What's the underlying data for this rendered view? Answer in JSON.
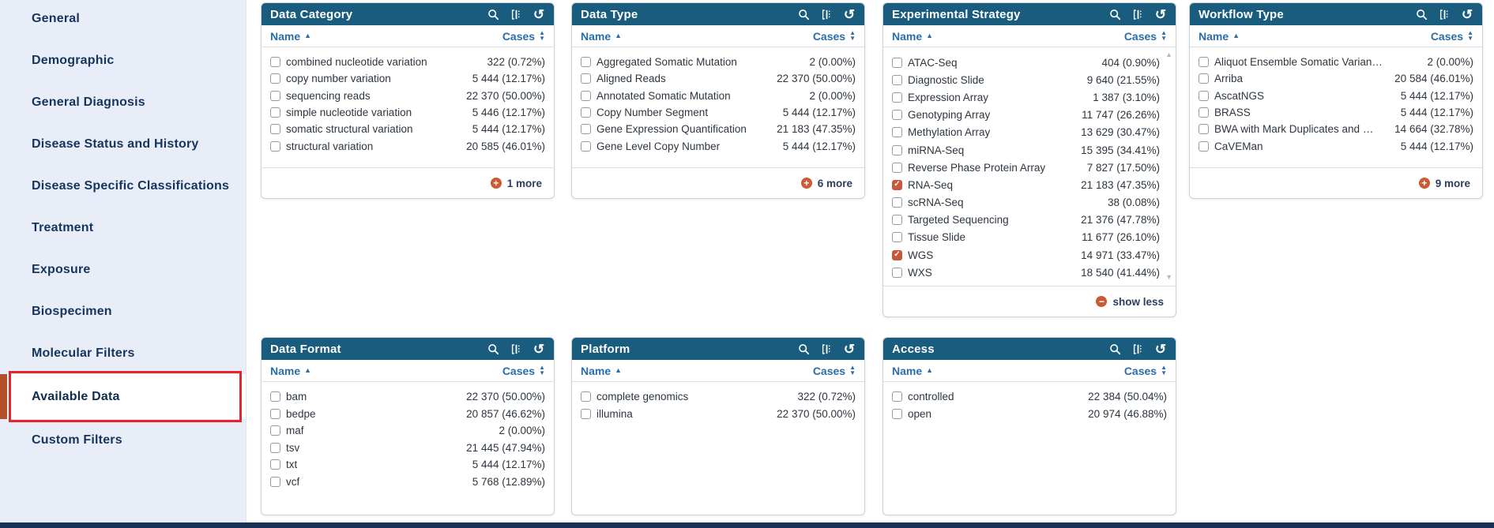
{
  "sidebar": {
    "items": [
      {
        "label": "General",
        "active": false
      },
      {
        "label": "Demographic",
        "active": false
      },
      {
        "label": "General Diagnosis",
        "active": false
      },
      {
        "label": "Disease Status and History",
        "active": false
      },
      {
        "label": "Disease Specific Classifications",
        "active": false
      },
      {
        "label": "Treatment",
        "active": false
      },
      {
        "label": "Exposure",
        "active": false
      },
      {
        "label": "Biospecimen",
        "active": false
      },
      {
        "label": "Molecular Filters",
        "active": false
      },
      {
        "label": "Available Data",
        "active": true
      },
      {
        "label": "Custom Filters",
        "active": false
      }
    ]
  },
  "cards": [
    {
      "title": "Data Category",
      "columns": {
        "name": "Name",
        "cases": "Cases"
      },
      "header_icons": [
        "search-icon",
        "flip-icon",
        "reset-icon"
      ],
      "items": [
        {
          "label": "combined nucleotide variation",
          "count": "322 (0.72%)",
          "checked": false
        },
        {
          "label": "copy number variation",
          "count": "5 444 (12.17%)",
          "checked": false
        },
        {
          "label": "sequencing reads",
          "count": "22 370 (50.00%)",
          "checked": false
        },
        {
          "label": "simple nucleotide variation",
          "count": "5 446 (12.17%)",
          "checked": false
        },
        {
          "label": "somatic structural variation",
          "count": "5 444 (12.17%)",
          "checked": false
        },
        {
          "label": "structural variation",
          "count": "20 585 (46.01%)",
          "checked": false
        }
      ],
      "footer": {
        "icon": "plus-icon",
        "label": "1 more"
      }
    },
    {
      "title": "Data Type",
      "columns": {
        "name": "Name",
        "cases": "Cases"
      },
      "header_icons": [
        "search-icon",
        "flip-icon",
        "reset-icon"
      ],
      "items": [
        {
          "label": "Aggregated Somatic Mutation",
          "count": "2 (0.00%)",
          "checked": false
        },
        {
          "label": "Aligned Reads",
          "count": "22 370 (50.00%)",
          "checked": false
        },
        {
          "label": "Annotated Somatic Mutation",
          "count": "2 (0.00%)",
          "checked": false
        },
        {
          "label": "Copy Number Segment",
          "count": "5 444 (12.17%)",
          "checked": false
        },
        {
          "label": "Gene Expression Quantification",
          "count": "21 183 (47.35%)",
          "checked": false
        },
        {
          "label": "Gene Level Copy Number",
          "count": "5 444 (12.17%)",
          "checked": false
        }
      ],
      "footer": {
        "icon": "plus-icon",
        "label": "6 more"
      }
    },
    {
      "title": "Experimental Strategy",
      "columns": {
        "name": "Name",
        "cases": "Cases"
      },
      "header_icons": [
        "search-icon",
        "flip-icon",
        "reset-icon"
      ],
      "scrollbar": true,
      "items": [
        {
          "label": "ATAC-Seq",
          "count": "404 (0.90%)",
          "checked": false
        },
        {
          "label": "Diagnostic Slide",
          "count": "9 640 (21.55%)",
          "checked": false
        },
        {
          "label": "Expression Array",
          "count": "1 387 (3.10%)",
          "checked": false
        },
        {
          "label": "Genotyping Array",
          "count": "11 747 (26.26%)",
          "checked": false
        },
        {
          "label": "Methylation Array",
          "count": "13 629 (30.47%)",
          "checked": false
        },
        {
          "label": "miRNA-Seq",
          "count": "15 395 (34.41%)",
          "checked": false
        },
        {
          "label": "Reverse Phase Protein Array",
          "count": "7 827 (17.50%)",
          "checked": false
        },
        {
          "label": "RNA-Seq",
          "count": "21 183 (47.35%)",
          "checked": true
        },
        {
          "label": "scRNA-Seq",
          "count": "38 (0.08%)",
          "checked": false
        },
        {
          "label": "Targeted Sequencing",
          "count": "21 376 (47.78%)",
          "checked": false
        },
        {
          "label": "Tissue Slide",
          "count": "11 677 (26.10%)",
          "checked": false
        },
        {
          "label": "WGS",
          "count": "14 971 (33.47%)",
          "checked": true
        },
        {
          "label": "WXS",
          "count": "18 540 (41.44%)",
          "checked": false
        }
      ],
      "footer": {
        "icon": "minus-icon",
        "label": "show less"
      }
    },
    {
      "title": "Workflow Type",
      "columns": {
        "name": "Name",
        "cases": "Cases"
      },
      "header_icons": [
        "search-icon",
        "flip-icon",
        "reset-icon"
      ],
      "items": [
        {
          "label": "Aliquot Ensemble Somatic Varian…",
          "count": "2 (0.00%)",
          "checked": false
        },
        {
          "label": "Arriba",
          "count": "20 584 (46.01%)",
          "checked": false
        },
        {
          "label": "AscatNGS",
          "count": "5 444 (12.17%)",
          "checked": false
        },
        {
          "label": "BRASS",
          "count": "5 444 (12.17%)",
          "checked": false
        },
        {
          "label": "BWA with Mark Duplicates and …",
          "count": "14 664 (32.78%)",
          "checked": false
        },
        {
          "label": "CaVEMan",
          "count": "5 444 (12.17%)",
          "checked": false
        }
      ],
      "footer": {
        "icon": "plus-icon",
        "label": "9 more"
      }
    },
    {
      "title": "Data Format",
      "columns": {
        "name": "Name",
        "cases": "Cases"
      },
      "header_icons": [
        "search-icon",
        "flip-icon",
        "reset-icon"
      ],
      "items": [
        {
          "label": "bam",
          "count": "22 370 (50.00%)",
          "checked": false
        },
        {
          "label": "bedpe",
          "count": "20 857 (46.62%)",
          "checked": false
        },
        {
          "label": "maf",
          "count": "2 (0.00%)",
          "checked": false
        },
        {
          "label": "tsv",
          "count": "21 445 (47.94%)",
          "checked": false
        },
        {
          "label": "txt",
          "count": "5 444 (12.17%)",
          "checked": false
        },
        {
          "label": "vcf",
          "count": "5 768 (12.89%)",
          "checked": false
        }
      ],
      "footer": null
    },
    {
      "title": "Platform",
      "columns": {
        "name": "Name",
        "cases": "Cases"
      },
      "header_icons": [
        "search-icon",
        "flip-icon",
        "reset-icon"
      ],
      "items": [
        {
          "label": "complete genomics",
          "count": "322 (0.72%)",
          "checked": false
        },
        {
          "label": "illumina",
          "count": "22 370 (50.00%)",
          "checked": false
        }
      ],
      "footer": null
    },
    {
      "title": "Access",
      "columns": {
        "name": "Name",
        "cases": "Cases"
      },
      "header_icons": [
        "search-icon",
        "flip-icon",
        "reset-icon"
      ],
      "items": [
        {
          "label": "controlled",
          "count": "22 384 (50.04%)",
          "checked": false
        },
        {
          "label": "open",
          "count": "20 974 (46.88%)",
          "checked": false
        }
      ],
      "footer": null
    }
  ],
  "colors": {
    "card_header_bg": "#195c7e",
    "sort_link_blue": "#2b6da8",
    "accent_orange": "#c9573c",
    "active_item_border": "#b5502c",
    "annotation_red": "#e8242a",
    "sidebar_bg": "#e9edf8",
    "sidebar_text": "#15355c",
    "bottom_bar": "#1a3157"
  }
}
